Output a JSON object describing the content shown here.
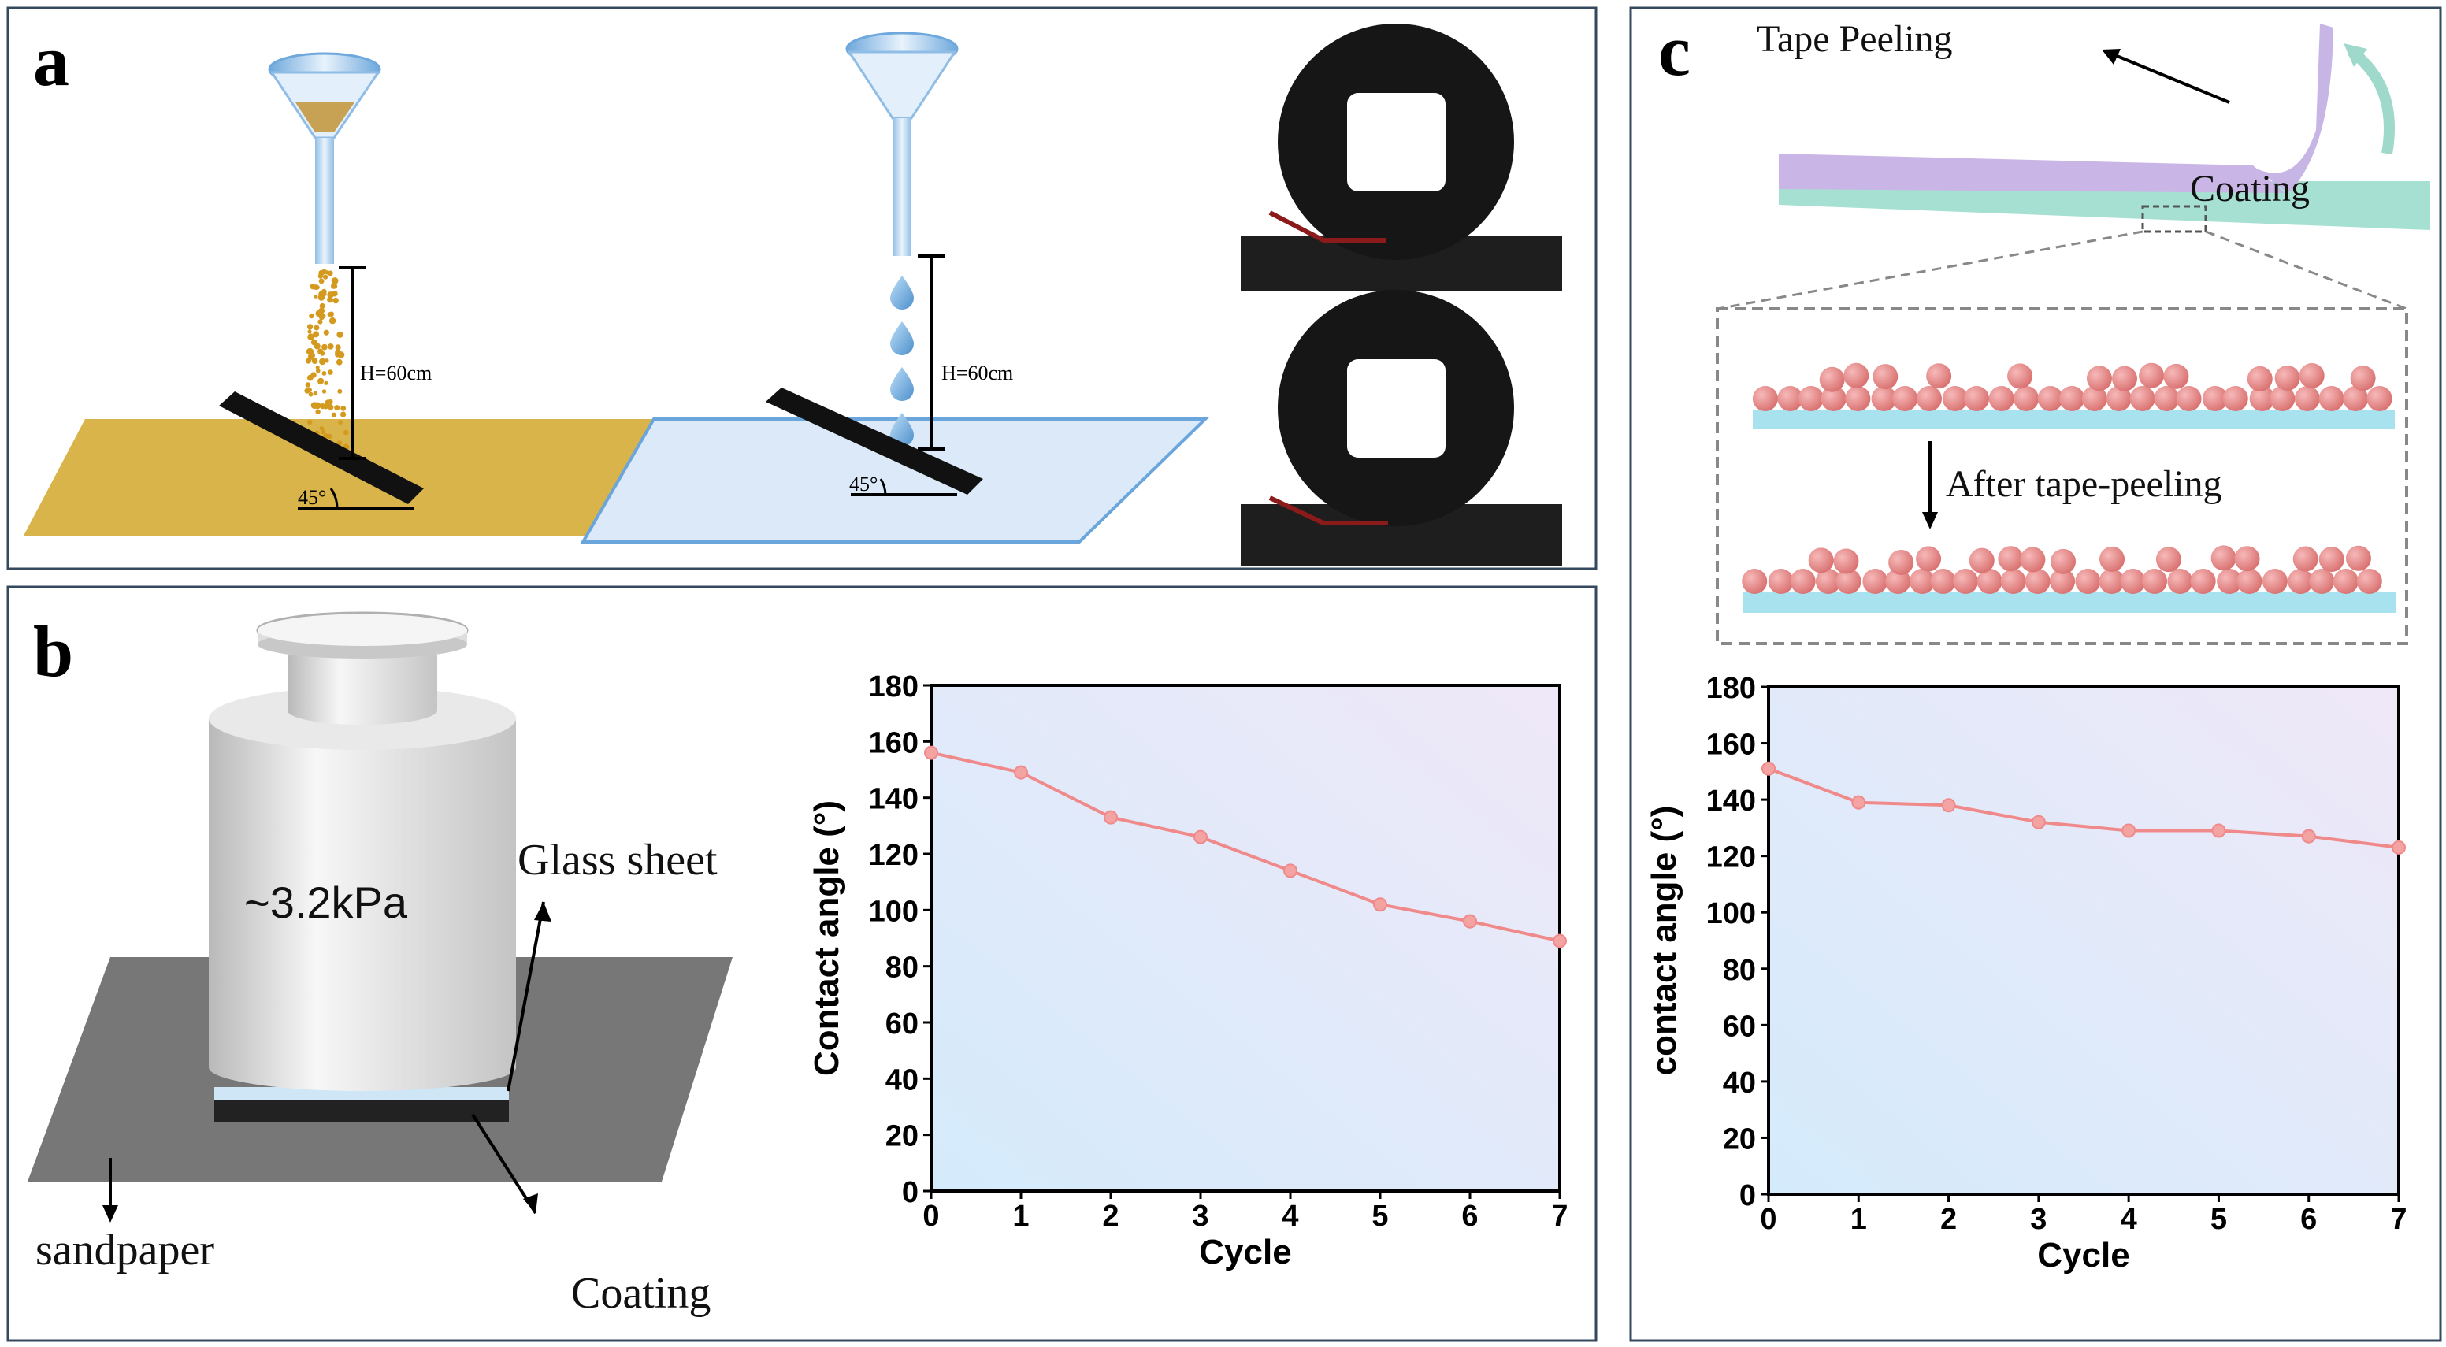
{
  "panels": {
    "a": {
      "letter": "a",
      "height_label_sand": "H=60cm",
      "height_label_water": "H=60cm",
      "angle_label_sand": "45°",
      "angle_label_water": "45°"
    },
    "b": {
      "letter": "b",
      "pressure_label": "~3.2kPa",
      "glass_label": "Glass sheet",
      "sandpaper_label": "sandpaper",
      "coating_label": "Coating"
    },
    "c": {
      "letter": "c",
      "tape_label": "Tape Peeling",
      "coating_label": "Coating",
      "after_label": "After tape-peeling"
    }
  },
  "colors": {
    "line": "#f08a8a",
    "marker": "#f4a3a3",
    "frame": "#34485e",
    "sand": "#d9b44a",
    "water": "#8ec3ea"
  },
  "chart_data": [
    {
      "type": "line",
      "panel": "b",
      "x": [
        0,
        1,
        2,
        3,
        4,
        5,
        6,
        7
      ],
      "values": [
        156,
        149,
        133,
        126,
        114,
        102,
        96,
        89
      ],
      "xlabel": "Cycle",
      "ylabel": "Contact angle (°)",
      "xlim": [
        0,
        7
      ],
      "ylim": [
        0,
        180
      ],
      "yticks": [
        0,
        20,
        40,
        60,
        80,
        100,
        120,
        140,
        160,
        180
      ],
      "xticks": [
        0,
        1,
        2,
        3,
        4,
        5,
        6,
        7
      ]
    },
    {
      "type": "line",
      "panel": "c",
      "x": [
        0,
        1,
        2,
        3,
        4,
        5,
        6,
        7
      ],
      "values": [
        151,
        139,
        138,
        132,
        129,
        129,
        127,
        123
      ],
      "xlabel": "Cycle",
      "ylabel": "contact angle (°)",
      "xlim": [
        0,
        7
      ],
      "ylim": [
        0,
        180
      ],
      "yticks": [
        0,
        20,
        40,
        60,
        80,
        100,
        120,
        140,
        160,
        180
      ],
      "xticks": [
        0,
        1,
        2,
        3,
        4,
        5,
        6,
        7
      ]
    }
  ]
}
